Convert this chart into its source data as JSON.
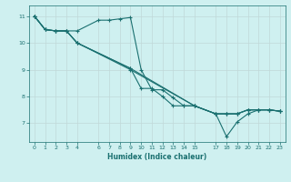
{
  "xlabel": "Humidex (Indice chaleur)",
  "background_color": "#cff0f0",
  "grid_color": "#c0d8d8",
  "line_color": "#1a7070",
  "lines": [
    {
      "x": [
        0,
        1,
        2,
        3,
        4,
        6,
        7,
        8,
        9,
        10,
        11,
        12,
        13,
        14,
        15,
        17,
        18,
        19,
        20,
        21,
        22,
        23
      ],
      "y": [
        11.0,
        10.5,
        10.45,
        10.45,
        10.45,
        10.85,
        10.85,
        10.9,
        10.95,
        9.0,
        8.25,
        8.25,
        7.95,
        7.65,
        7.65,
        7.35,
        6.5,
        7.05,
        7.35,
        7.5,
        7.5,
        7.45
      ]
    },
    {
      "x": [
        0,
        1,
        2,
        3,
        4,
        9,
        10,
        11,
        12,
        13,
        14,
        15,
        17,
        18,
        19,
        20,
        21,
        22,
        23
      ],
      "y": [
        11.0,
        10.5,
        10.45,
        10.45,
        10.0,
        9.05,
        8.3,
        8.3,
        8.0,
        7.65,
        7.65,
        7.65,
        7.35,
        7.35,
        7.35,
        7.5,
        7.5,
        7.5,
        7.45
      ]
    },
    {
      "x": [
        0,
        1,
        2,
        3,
        4,
        9,
        15,
        17,
        18,
        19,
        20,
        21,
        22,
        23
      ],
      "y": [
        11.0,
        10.5,
        10.45,
        10.45,
        10.0,
        9.05,
        7.65,
        7.35,
        7.35,
        7.35,
        7.5,
        7.5,
        7.5,
        7.45
      ]
    },
    {
      "x": [
        0,
        1,
        2,
        3,
        4,
        9,
        15,
        17,
        18,
        19,
        20,
        21,
        22,
        23
      ],
      "y": [
        11.0,
        10.5,
        10.45,
        10.45,
        10.0,
        9.0,
        7.65,
        7.35,
        7.35,
        7.35,
        7.5,
        7.5,
        7.5,
        7.45
      ]
    }
  ],
  "xlim": [
    -0.5,
    23.5
  ],
  "ylim": [
    6.3,
    11.4
  ],
  "yticks": [
    7,
    8,
    9,
    10,
    11
  ],
  "xticks": [
    0,
    1,
    2,
    3,
    4,
    6,
    7,
    8,
    9,
    10,
    11,
    12,
    13,
    14,
    15,
    17,
    18,
    19,
    20,
    21,
    22,
    23
  ],
  "marker": "+",
  "markersize": 3,
  "markeredgewidth": 0.8,
  "linewidth": 0.8,
  "tick_labelsize": 4.5,
  "xlabel_fontsize": 5.5,
  "xlabel_fontweight": "bold"
}
